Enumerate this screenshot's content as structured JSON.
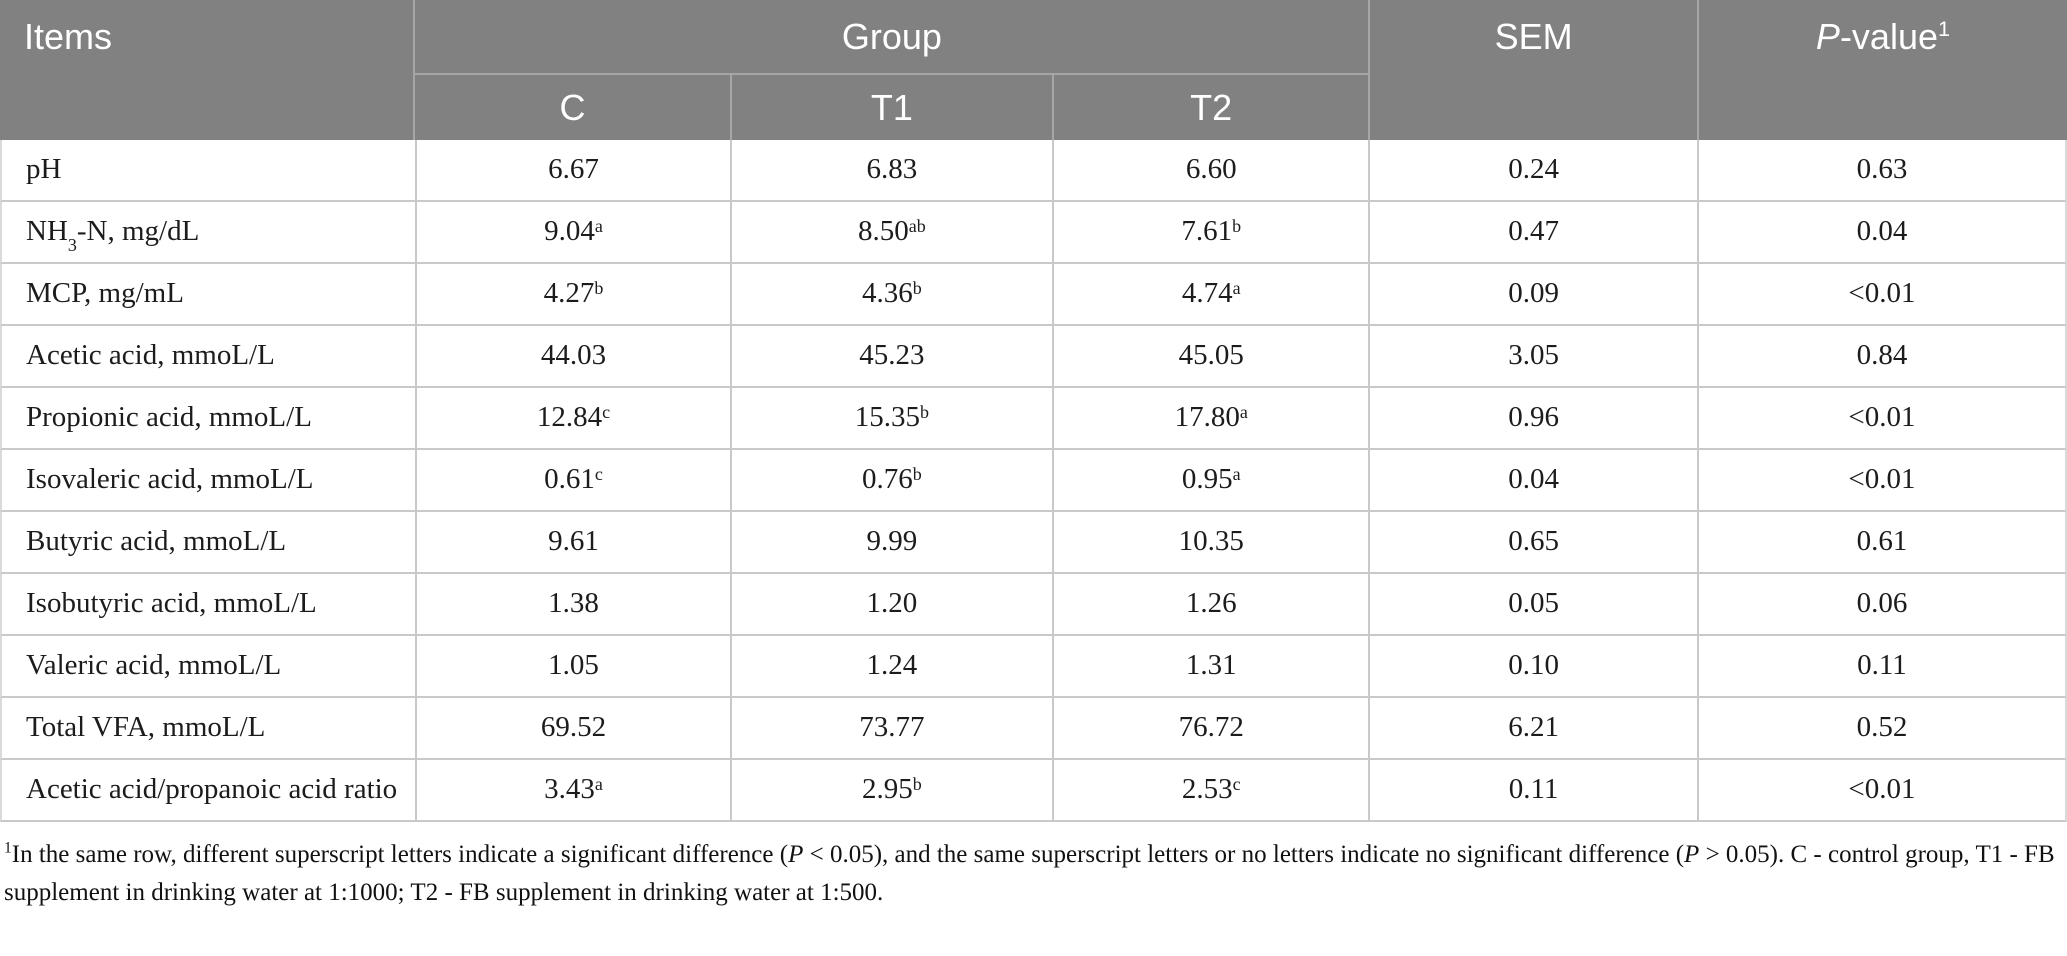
{
  "table": {
    "header": {
      "items_label": "Items",
      "group_label": "Group",
      "subgroups": [
        "C",
        "T1",
        "T2"
      ],
      "sem_label": "SEM",
      "pvalue_label": "*P*-value{1}"
    },
    "column_keys": [
      "c",
      "t1",
      "t2",
      "sem",
      "p"
    ],
    "rows": [
      {
        "item": "pH",
        "c": "6.67",
        "t1": "6.83",
        "t2": "6.60",
        "sem": "0.24",
        "p": "0.63"
      },
      {
        "item": "NH~3~-N, mg/dL",
        "c": "9.04{a}",
        "t1": "8.50{ab}",
        "t2": "7.61{b}",
        "sem": "0.47",
        "p": "0.04"
      },
      {
        "item": "MCP, mg/mL",
        "c": "4.27{b}",
        "t1": "4.36{b}",
        "t2": "4.74{a}",
        "sem": "0.09",
        "p": "<0.01"
      },
      {
        "item": "Acetic acid, mmoL/L",
        "c": "44.03",
        "t1": "45.23",
        "t2": "45.05",
        "sem": "3.05",
        "p": "0.84"
      },
      {
        "item": "Propionic acid, mmoL/L",
        "c": "12.84{c}",
        "t1": "15.35{b}",
        "t2": "17.80{a}",
        "sem": "0.96",
        "p": "<0.01"
      },
      {
        "item": "Isovaleric acid, mmoL/L",
        "c": "0.61{c}",
        "t1": "0.76{b}",
        "t2": "0.95{a}",
        "sem": "0.04",
        "p": "<0.01"
      },
      {
        "item": "Butyric acid, mmoL/L",
        "c": "9.61",
        "t1": "9.99",
        "t2": "10.35",
        "sem": "0.65",
        "p": "0.61"
      },
      {
        "item": "Isobutyric acid, mmoL/L",
        "c": "1.38",
        "t1": "1.20",
        "t2": "1.26",
        "sem": "0.05",
        "p": "0.06"
      },
      {
        "item": "Valeric acid, mmoL/L",
        "c": "1.05",
        "t1": "1.24",
        "t2": "1.31",
        "sem": "0.10",
        "p": "0.11"
      },
      {
        "item": "Total VFA, mmoL/L",
        "c": "69.52",
        "t1": "73.77",
        "t2": "76.72",
        "sem": "6.21",
        "p": "0.52"
      },
      {
        "item": "Acetic acid/propanoic acid ratio",
        "c": "3.43{a}",
        "t1": "2.95{b}",
        "t2": "2.53{c}",
        "sem": "0.11",
        "p": "<0.01"
      }
    ],
    "footnote": "{1}In the same row, different superscript letters indicate a significant difference (*P* < 0.05), and the same superscript letters or no letters indicate no significant difference (*P* > 0.05). C - control group, T1 - FB supplement in drinking water at 1:1000; T2 - FB supplement in drinking water at 1:500.",
    "colors": {
      "header_bg": "#818181",
      "header_text": "#ffffff",
      "header_divider": "#a6a6a6",
      "grid_line": "#c9c9c9",
      "body_text": "#1c1c1c"
    }
  }
}
